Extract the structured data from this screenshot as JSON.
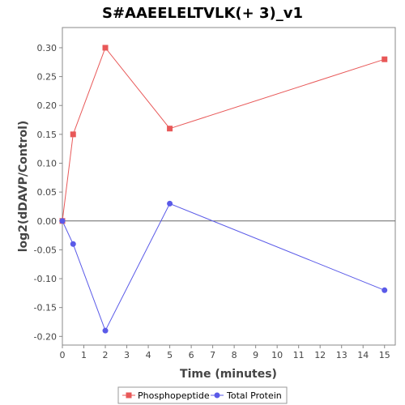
{
  "chart_data": {
    "type": "line",
    "title": "S#AAEELELTVLK(+ 3)_v1",
    "xlabel": "Time (minutes)",
    "ylabel": "log2(dDAVP/Control)",
    "xlim": [
      0,
      15.5
    ],
    "ylim": [
      -0.215,
      0.335
    ],
    "x_ticks": [
      0,
      1,
      2,
      3,
      4,
      5,
      6,
      7,
      8,
      9,
      10,
      11,
      12,
      13,
      14,
      15
    ],
    "y_ticks": [
      -0.2,
      -0.15,
      -0.1,
      -0.05,
      0.0,
      0.05,
      0.1,
      0.15,
      0.2,
      0.25,
      0.3
    ],
    "y_tick_labels": [
      "-0.20",
      "-0.15",
      "-0.10",
      "-0.05",
      "0.00",
      "0.05",
      "0.10",
      "0.15",
      "0.20",
      "0.25",
      "0.30"
    ],
    "zero_line": true,
    "grid": false,
    "legend_position": "bottom",
    "series": [
      {
        "name": "Phosphopeptide",
        "color": "#e85858",
        "marker": "square",
        "x": [
          0,
          0.5,
          2,
          5,
          15
        ],
        "y": [
          0.0,
          0.15,
          0.3,
          0.16,
          0.28
        ]
      },
      {
        "name": "Total Protein",
        "color": "#5a5ae8",
        "marker": "circle",
        "x": [
          0,
          0.5,
          2,
          5,
          15
        ],
        "y": [
          0.0,
          -0.04,
          -0.19,
          0.03,
          -0.12
        ]
      }
    ]
  }
}
